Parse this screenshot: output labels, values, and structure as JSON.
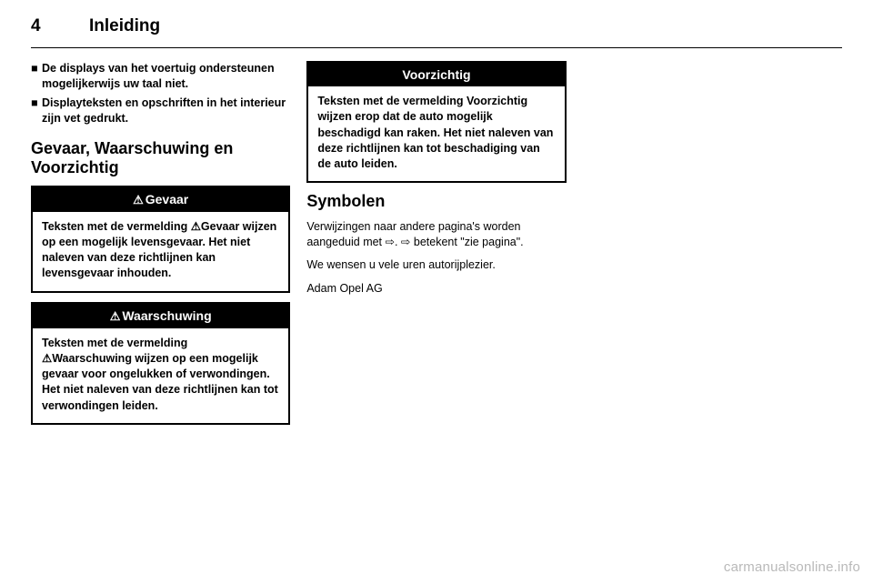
{
  "header": {
    "page_number": "4",
    "section": "Inleiding"
  },
  "col1": {
    "bullets": [
      "De displays van het voertuig ondersteunen mogelijkerwijs uw taal niet.",
      "Displayteksten en opschriften in het interieur zijn vet gedrukt."
    ],
    "heading": "Gevaar, Waarschuwing en Voorzichtig",
    "gevaar": {
      "title": "Gevaar",
      "body": "Teksten met de vermelding ⚠Gevaar wijzen op een mogelijk levensgevaar. Het niet naleven van deze richtlijnen kan levensgevaar inhouden."
    },
    "waarschuwing": {
      "title": "Waarschuwing",
      "body": "Teksten met de vermelding ⚠Waarschuwing wijzen op een mogelijk gevaar voor ongelukken of verwondingen. Het niet naleven van deze richtlijnen kan tot verwondingen leiden."
    }
  },
  "col2": {
    "voorzichtig": {
      "title": "Voorzichtig",
      "body": "Teksten met de vermelding Voorzichtig wijzen erop dat de auto mogelijk beschadigd kan raken. Het niet naleven van deze richtlijnen kan tot beschadiging van de auto leiden."
    },
    "symbolen_heading": "Symbolen",
    "symbolen_para": "Verwijzingen naar andere pagina's worden aangeduid met ⇨. ⇨ betekent \"zie pagina\".",
    "wish": "We wensen u vele uren autorijplezier.",
    "signoff": "Adam Opel AG"
  },
  "watermark": "carmanualsonline.info",
  "icons": {
    "warning": "⚠",
    "bullet": "■"
  }
}
